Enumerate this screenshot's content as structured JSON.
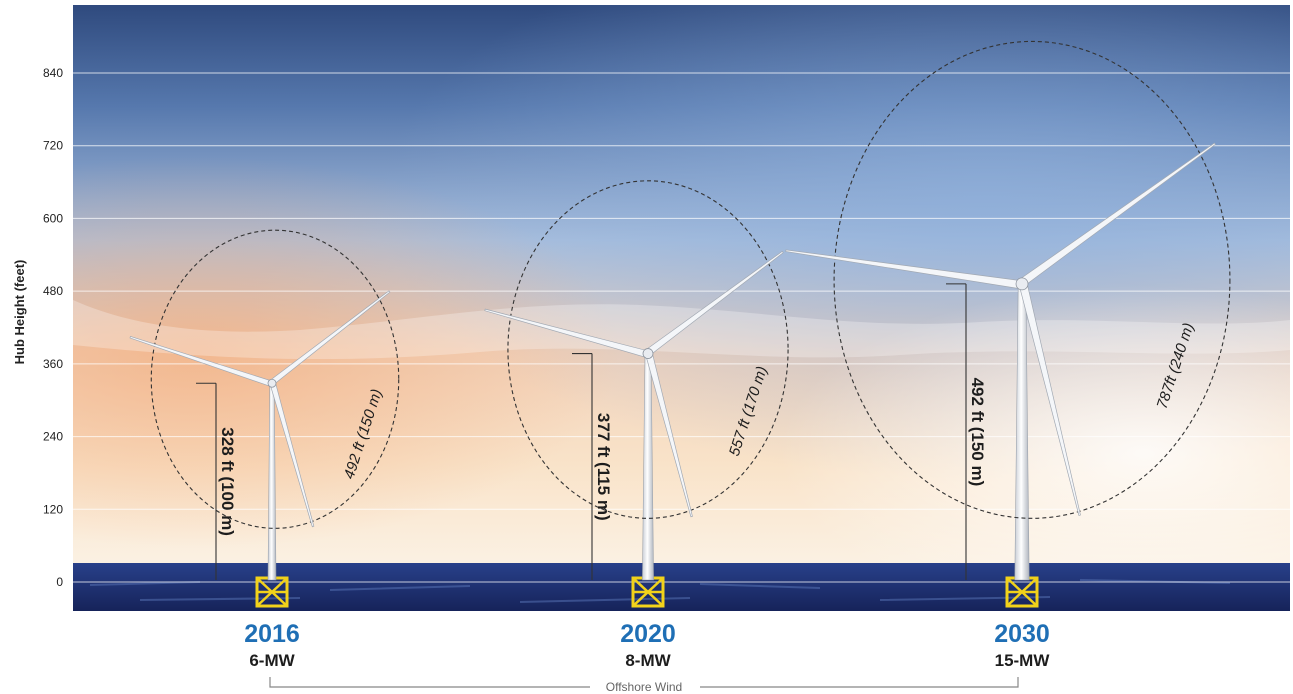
{
  "chart_data": {
    "type": "scatter",
    "ylabel": "Hub Height (feet)",
    "yticks": [
      0,
      120,
      240,
      360,
      480,
      600,
      720,
      840
    ],
    "ylim": [
      -45,
      945
    ],
    "grid": true,
    "turbines": [
      {
        "year": "2016",
        "rating": "6-MW",
        "hub_height_ft": 328,
        "hub_label": "328 ft (100 m)",
        "rotor_diameter_ft": 492,
        "rotor_label": "492 ft (150 m)"
      },
      {
        "year": "2020",
        "rating": "8-MW",
        "hub_height_ft": 377,
        "hub_label": "377 ft (115 m)",
        "rotor_diameter_ft": 557,
        "rotor_label": "557 ft (170 m)"
      },
      {
        "year": "2030",
        "rating": "15-MW",
        "hub_height_ft": 492,
        "hub_label": "492 ft (150 m)",
        "rotor_diameter_ft": 787,
        "rotor_label": "787ft (240 m)"
      }
    ],
    "bracket_label": "Offshore Wind"
  },
  "colors": {
    "year_text": "#1f6fb5",
    "sea": "#1e2f6e",
    "foundation": "#f2d21a",
    "sky_top": "#3d5a8f",
    "sky_warm": "#f6c9a3"
  }
}
